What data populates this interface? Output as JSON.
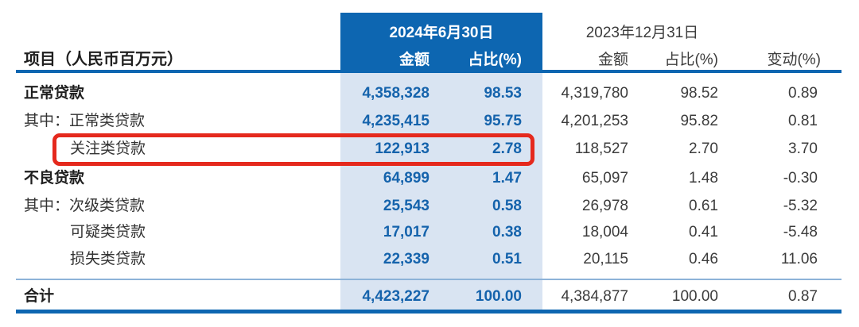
{
  "title_column": "项目（人民币百万元）",
  "header": {
    "period_current": "2024年6月30日",
    "period_prior": "2023年12月31日",
    "amount_label_current": "金额",
    "ratio_label_current": "占比(%)",
    "amount_label_prior": "金额",
    "ratio_label_prior": "占比(%)",
    "change_label": "变动(%)"
  },
  "colors": {
    "header_blue": "#0d66b1",
    "band_blue": "#d9e4f2",
    "value_blue": "#1563ac",
    "highlight_red": "#e5291d"
  },
  "rows": [
    {
      "label": "正常贷款",
      "amount_2024": "4,358,328",
      "ratio_2024": "98.53",
      "amount_2023": "4,319,780",
      "ratio_2023": "98.52",
      "change": "0.89"
    },
    {
      "label": "其中：正常类贷款",
      "amount_2024": "4,235,415",
      "ratio_2024": "95.75",
      "amount_2023": "4,201,253",
      "ratio_2023": "95.82",
      "change": "0.81"
    },
    {
      "label": "关注类贷款",
      "amount_2024": "122,913",
      "ratio_2024": "2.78",
      "amount_2023": "118,527",
      "ratio_2023": "2.70",
      "change": "3.70"
    },
    {
      "label": "不良贷款",
      "amount_2024": "64,899",
      "ratio_2024": "1.47",
      "amount_2023": "65,097",
      "ratio_2023": "1.48",
      "change": "-0.30"
    },
    {
      "label": "其中：次级类贷款",
      "amount_2024": "25,543",
      "ratio_2024": "0.58",
      "amount_2023": "26,978",
      "ratio_2023": "0.61",
      "change": "-5.32"
    },
    {
      "label": "可疑类贷款",
      "amount_2024": "17,017",
      "ratio_2024": "0.38",
      "amount_2023": "18,004",
      "ratio_2023": "0.41",
      "change": "-5.48"
    },
    {
      "label": "损失类贷款",
      "amount_2024": "22,339",
      "ratio_2024": "0.51",
      "amount_2023": "20,115",
      "ratio_2023": "0.46",
      "change": "11.06"
    }
  ],
  "total": {
    "label": "合计",
    "amount_2024": "4,423,227",
    "ratio_2024": "100.00",
    "amount_2023": "4,384,877",
    "ratio_2023": "100.00",
    "change": "0.87"
  }
}
